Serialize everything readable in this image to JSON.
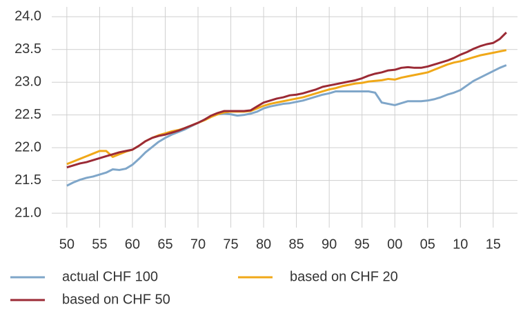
{
  "chart_data": {
    "type": "line",
    "x": [
      1950,
      1951,
      1952,
      1953,
      1954,
      1955,
      1956,
      1957,
      1958,
      1959,
      1960,
      1961,
      1962,
      1963,
      1964,
      1965,
      1966,
      1967,
      1968,
      1969,
      1970,
      1971,
      1972,
      1973,
      1974,
      1975,
      1976,
      1977,
      1978,
      1979,
      1980,
      1981,
      1982,
      1983,
      1984,
      1985,
      1986,
      1987,
      1988,
      1989,
      1990,
      1991,
      1992,
      1993,
      1994,
      1995,
      1996,
      1997,
      1998,
      1999,
      2000,
      2001,
      2002,
      2003,
      2004,
      2005,
      2006,
      2007,
      2008,
      2009,
      2010,
      2011,
      2012,
      2013,
      2014,
      2015,
      2016,
      2017
    ],
    "series": [
      {
        "name": "actual CHF 100",
        "color": "#7fa6c9",
        "values": [
          21.42,
          21.47,
          21.51,
          21.54,
          21.56,
          21.59,
          21.62,
          21.67,
          21.66,
          21.68,
          21.74,
          21.83,
          21.93,
          22.01,
          22.09,
          22.15,
          22.2,
          22.24,
          22.28,
          22.33,
          22.38,
          22.43,
          22.48,
          22.51,
          22.52,
          22.51,
          22.49,
          22.5,
          22.52,
          22.55,
          22.6,
          22.63,
          22.65,
          22.67,
          22.68,
          22.7,
          22.72,
          22.75,
          22.78,
          22.81,
          22.83,
          22.86,
          22.86,
          22.86,
          22.86,
          22.86,
          22.86,
          22.84,
          22.69,
          22.67,
          22.65,
          22.68,
          22.71,
          22.71,
          22.71,
          22.72,
          22.74,
          22.77,
          22.81,
          22.84,
          22.88,
          22.95,
          23.02,
          23.07,
          23.12,
          23.17,
          23.22,
          23.26
        ]
      },
      {
        "name": "based on CHF 20",
        "color": "#f0a818",
        "values": [
          21.75,
          21.79,
          21.83,
          21.87,
          21.91,
          21.95,
          21.95,
          21.86,
          21.9,
          21.94,
          21.97,
          22.03,
          22.1,
          22.15,
          22.19,
          22.22,
          22.25,
          22.27,
          22.3,
          22.34,
          22.38,
          22.42,
          22.47,
          22.51,
          22.54,
          22.55,
          22.55,
          22.55,
          22.56,
          22.6,
          22.64,
          22.67,
          22.69,
          22.71,
          22.73,
          22.75,
          22.77,
          22.8,
          22.83,
          22.86,
          22.89,
          22.91,
          22.94,
          22.96,
          22.98,
          22.99,
          23.01,
          23.02,
          23.03,
          23.05,
          23.04,
          23.07,
          23.09,
          23.11,
          23.13,
          23.15,
          23.19,
          23.23,
          23.27,
          23.3,
          23.32,
          23.35,
          23.38,
          23.41,
          23.43,
          23.45,
          23.47,
          23.49
        ]
      },
      {
        "name": "based on CHF 50",
        "color": "#9b2a35",
        "values": [
          21.7,
          21.73,
          21.76,
          21.78,
          21.81,
          21.84,
          21.87,
          21.9,
          21.93,
          21.95,
          21.97,
          22.03,
          22.1,
          22.15,
          22.18,
          22.2,
          22.23,
          22.26,
          22.3,
          22.34,
          22.38,
          22.43,
          22.49,
          22.53,
          22.56,
          22.56,
          22.56,
          22.56,
          22.57,
          22.63,
          22.69,
          22.72,
          22.75,
          22.77,
          22.8,
          22.81,
          22.83,
          22.86,
          22.89,
          22.93,
          22.95,
          22.97,
          22.99,
          23.01,
          23.03,
          23.06,
          23.1,
          23.13,
          23.15,
          23.18,
          23.19,
          23.22,
          23.23,
          23.22,
          23.22,
          23.24,
          23.27,
          23.3,
          23.33,
          23.37,
          23.42,
          23.46,
          23.51,
          23.55,
          23.58,
          23.6,
          23.66,
          23.76
        ]
      }
    ],
    "xlim": [
      1947.7,
      2018.7
    ],
    "xticks": [
      {
        "value": 1950,
        "label": "50"
      },
      {
        "value": 1955,
        "label": "55"
      },
      {
        "value": 1960,
        "label": "60"
      },
      {
        "value": 1965,
        "label": "65"
      },
      {
        "value": 1970,
        "label": "70"
      },
      {
        "value": 1975,
        "label": "75"
      },
      {
        "value": 1980,
        "label": "80"
      },
      {
        "value": 1985,
        "label": "85"
      },
      {
        "value": 1990,
        "label": "90"
      },
      {
        "value": 1995,
        "label": "95"
      },
      {
        "value": 2000,
        "label": "00"
      },
      {
        "value": 2005,
        "label": "05"
      },
      {
        "value": 2010,
        "label": "10"
      },
      {
        "value": 2015,
        "label": "15"
      }
    ],
    "ylim": [
      20.78,
      24.15
    ],
    "yticks": [
      {
        "value": 21,
        "label": "21.0"
      },
      21.5,
      {
        "value": 22,
        "label": "22.0"
      },
      22.5,
      {
        "value": 23,
        "label": "23.0"
      },
      23.5,
      {
        "value": 24,
        "label": "24.0"
      }
    ],
    "grid": true
  }
}
